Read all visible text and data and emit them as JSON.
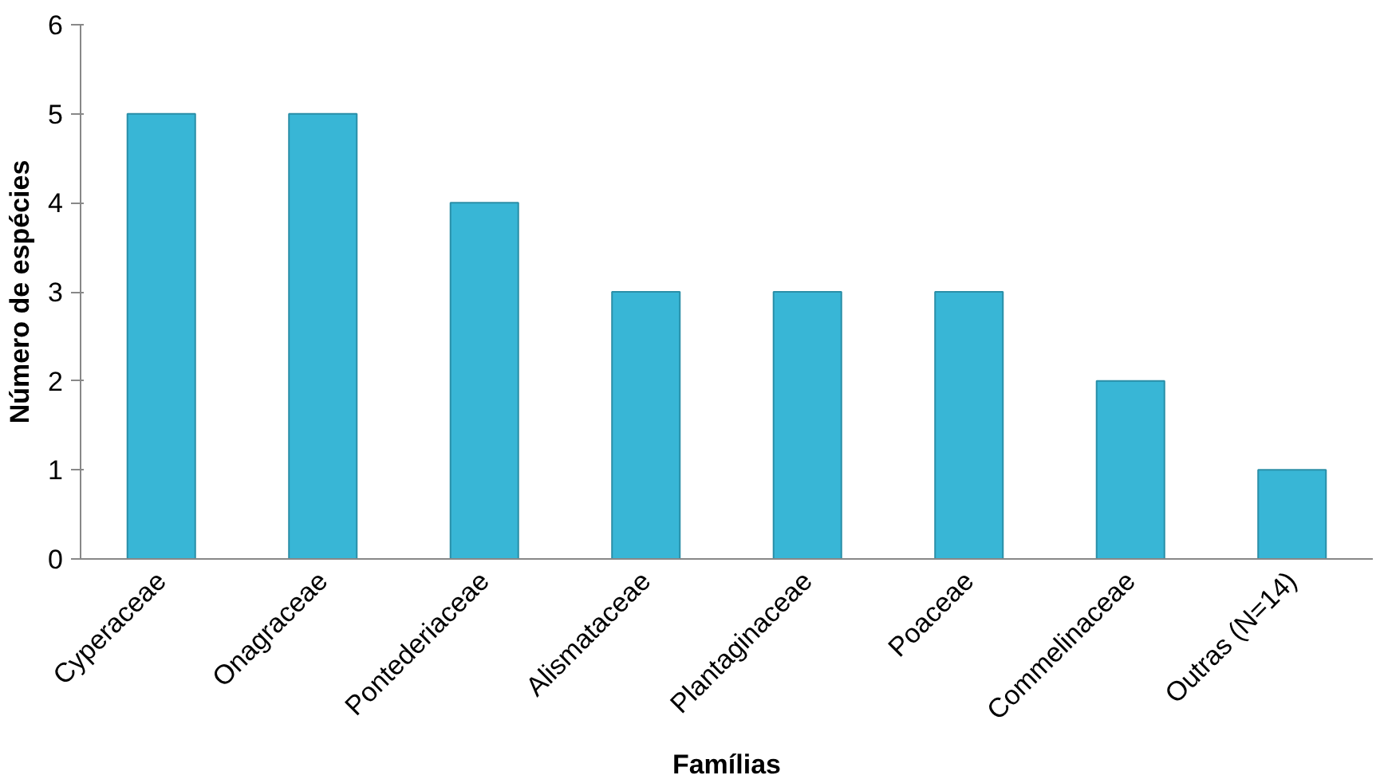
{
  "chart_data": {
    "type": "bar",
    "xlabel": "Famílias",
    "ylabel": "Número de espécies",
    "categories": [
      "Cyperaceae",
      "Onagraceae",
      "Pontederiaceae",
      "Alismataceae",
      "Plantaginaceae",
      "Poaceae",
      "Commelinaceae",
      "Outras (N=14)"
    ],
    "values": [
      5,
      5,
      4,
      3,
      3,
      3,
      2,
      1
    ],
    "color": "#38b6d6",
    "ylim": [
      0,
      6
    ],
    "yticks": [
      0,
      1,
      2,
      3,
      4,
      5,
      6
    ],
    "grid": false
  }
}
